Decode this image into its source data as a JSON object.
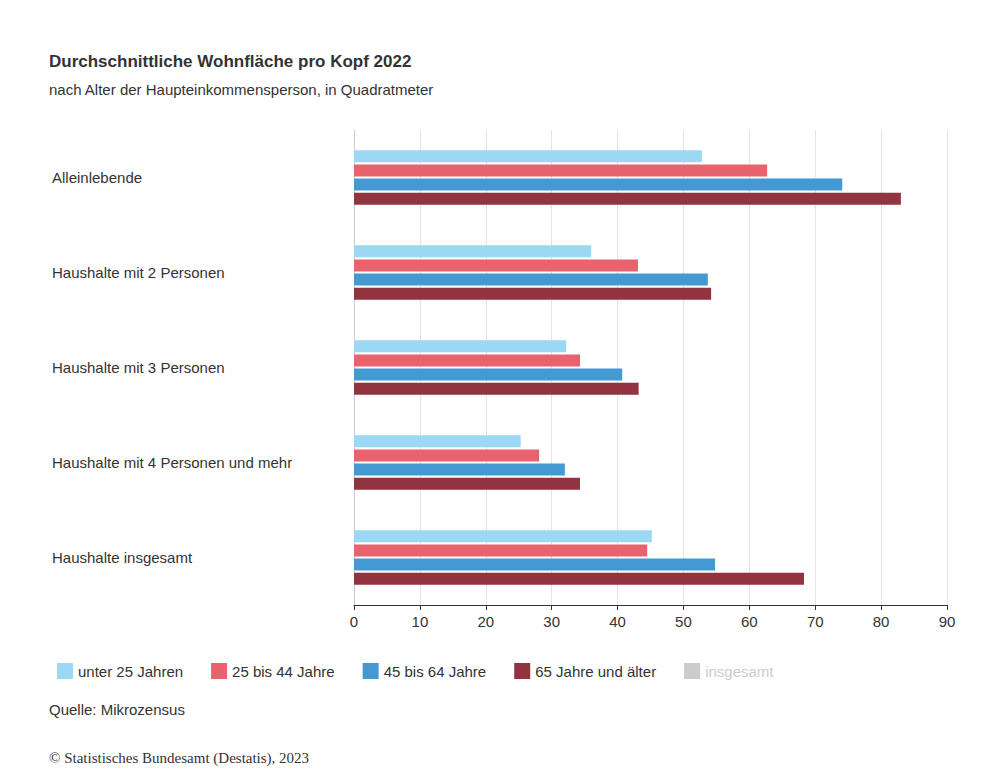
{
  "chart_data": {
    "type": "bar",
    "orientation": "horizontal",
    "title": "Durchschnittliche Wohnfläche pro Kopf 2022",
    "subtitle": "nach Alter der Haupteinkommensperson, in Quadratmeter",
    "source": "Quelle: Mikrozensus",
    "credit": "© Statistisches Bundesamt (Destatis), 2023",
    "categories": [
      "Alleinlebende",
      "Haushalte mit 2 Personen",
      "Haushalte mit 3 Personen",
      "Haushalte mit 4 Personen und mehr",
      "Haushalte insgesamt"
    ],
    "series": [
      {
        "name": "unter 25 Jahren",
        "color": "#9ad8f3",
        "values": [
          52.8,
          36.0,
          32.2,
          25.3,
          45.2
        ]
      },
      {
        "name": "25 bis 44 Jahre",
        "color": "#e9636f",
        "values": [
          62.7,
          43.1,
          34.3,
          28.1,
          44.5
        ]
      },
      {
        "name": "45 bis 64 Jahre",
        "color": "#4599d3",
        "values": [
          74.1,
          53.7,
          40.7,
          32.0,
          54.8
        ]
      },
      {
        "name": "65 Jahre und älter",
        "color": "#923340",
        "values": [
          83.0,
          54.2,
          43.2,
          34.3,
          68.3
        ]
      },
      {
        "name": "insgesamt",
        "color": "#cccccc",
        "values": [
          null,
          null,
          null,
          null,
          null
        ]
      }
    ],
    "xlim": [
      0,
      90
    ],
    "xticks": [
      0,
      10,
      20,
      30,
      40,
      50,
      60,
      70,
      80,
      90
    ],
    "grid": true,
    "legend": "bottom",
    "data_labels": false
  }
}
